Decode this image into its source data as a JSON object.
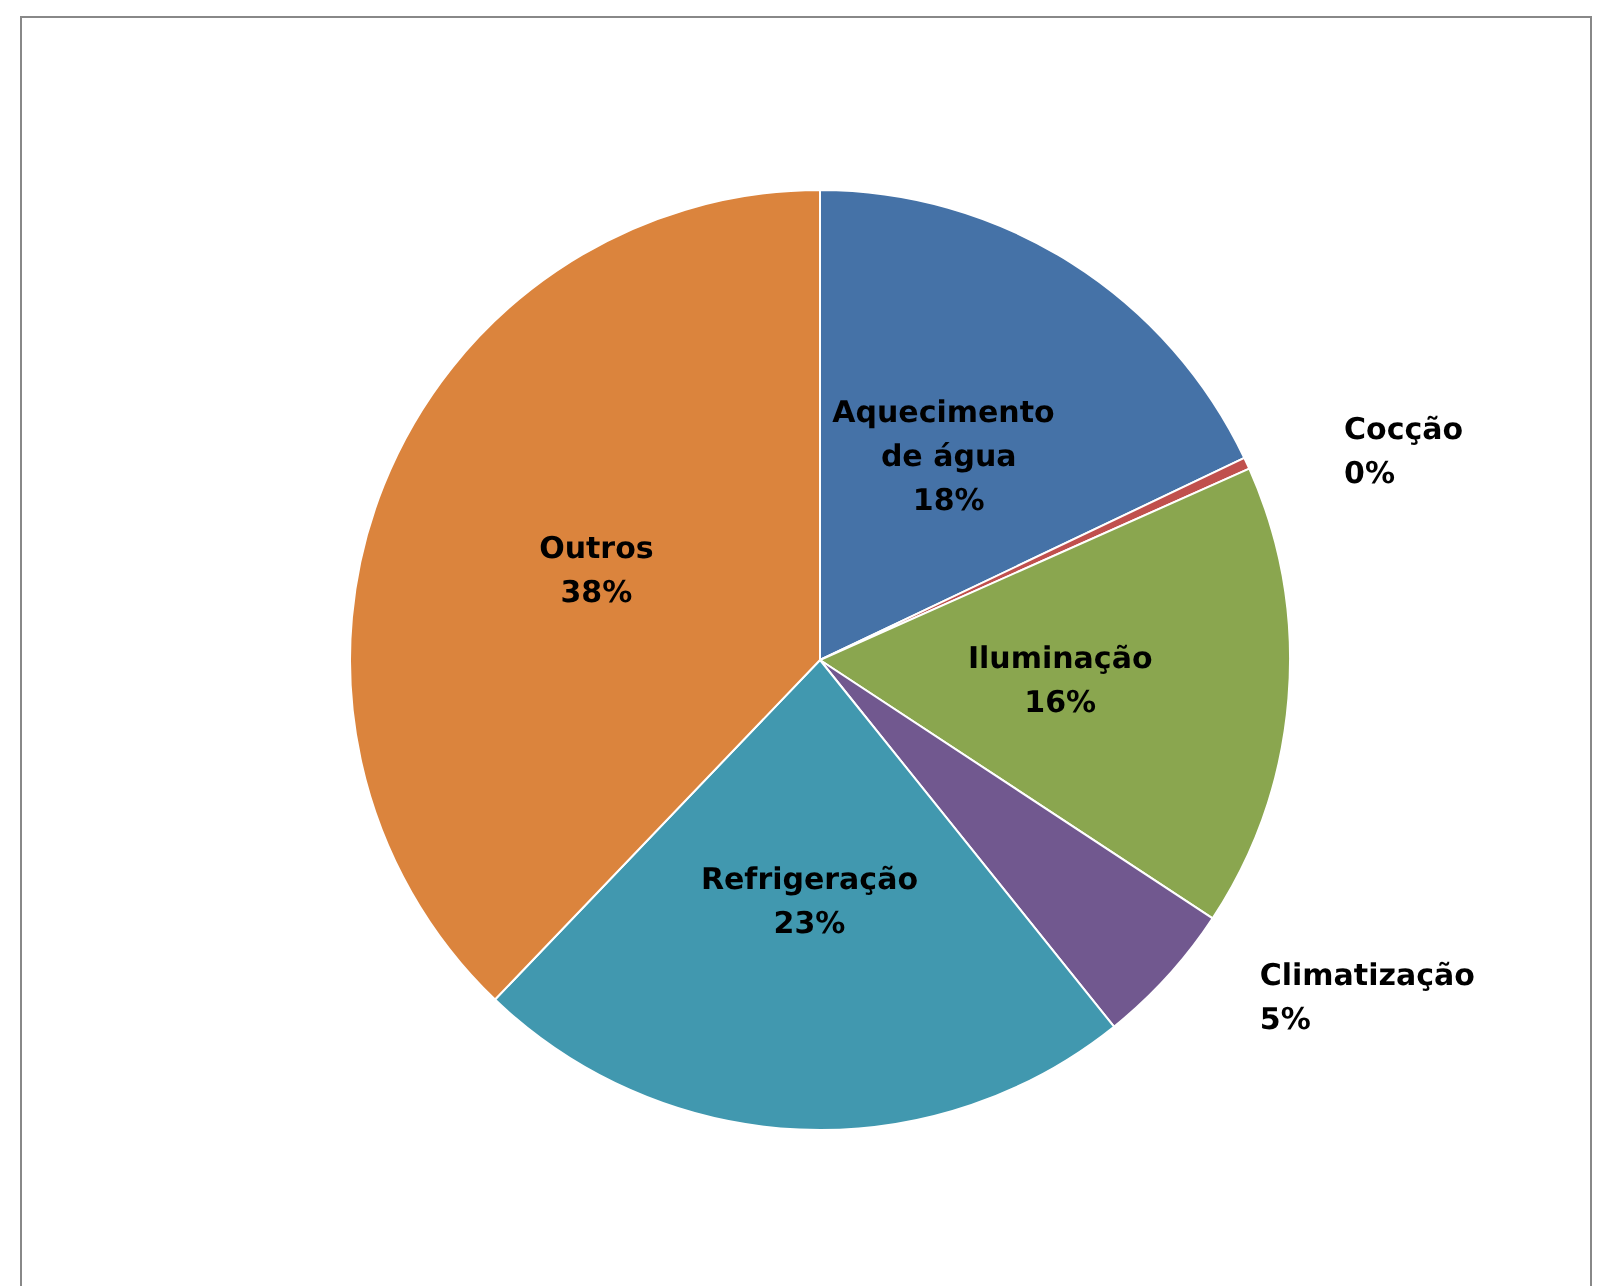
{
  "chart_data": {
    "type": "pie",
    "categories": [
      "Aquecimento de água",
      "Cocção",
      "Iluminação",
      "Climatização",
      "Refrigeração",
      "Outros"
    ],
    "values": [
      18,
      0.4,
      16,
      5,
      23,
      38
    ],
    "value_labels": [
      "18%",
      "0%",
      "16%",
      "5%",
      "23%",
      "38%"
    ],
    "colors": [
      "#4572a7",
      "#c0504d",
      "#8aa64f",
      "#71588f",
      "#4198af",
      "#db843d"
    ],
    "legend": false
  }
}
